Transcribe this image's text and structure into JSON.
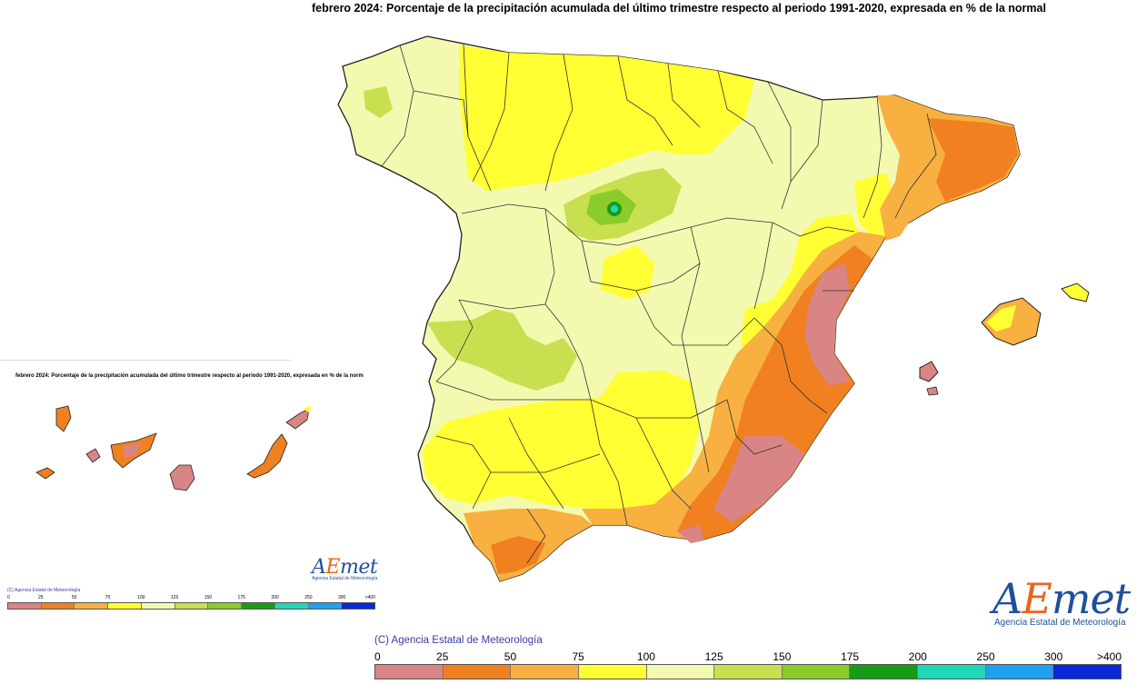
{
  "main_title": "febrero 2024: Porcentaje de la precipitación acumulada del último trimestre respecto al periodo 1991-2020, expresada en % de la normal",
  "inset_title": "febrero 2024: Porcentaje de la precipitación acumulada del último trimestre respecto al periodo 1991-2020, expresada en % de la norm",
  "copyright": "(C) Agencia Estatal de Meteorología",
  "logo": {
    "prefix": "A",
    "highlight": "E",
    "suffix": "met",
    "subtitle": "Agencia Estatal de Meteorología"
  },
  "legend": {
    "ticks": [
      "0",
      "25",
      "50",
      "75",
      "100",
      "125",
      "150",
      "175",
      "200",
      "250",
      "300",
      ">400"
    ],
    "colors": [
      "#d98585",
      "#f08020",
      "#f8b040",
      "#ffff33",
      "#f4f9b0",
      "#c8e050",
      "#8ccc2a",
      "#189c18",
      "#20d8b8",
      "#20a0f0",
      "#0a28d8"
    ]
  },
  "map": {
    "categories": {
      "lt25": "#d98585",
      "25_50": "#f08020",
      "50_75": "#f8b040",
      "75_100": "#ffff33",
      "100_125": "#f4f9b0",
      "125_150": "#c8e050",
      "150_175": "#8ccc2a",
      "175_200": "#189c18",
      "200_250": "#20d8b8"
    }
  }
}
